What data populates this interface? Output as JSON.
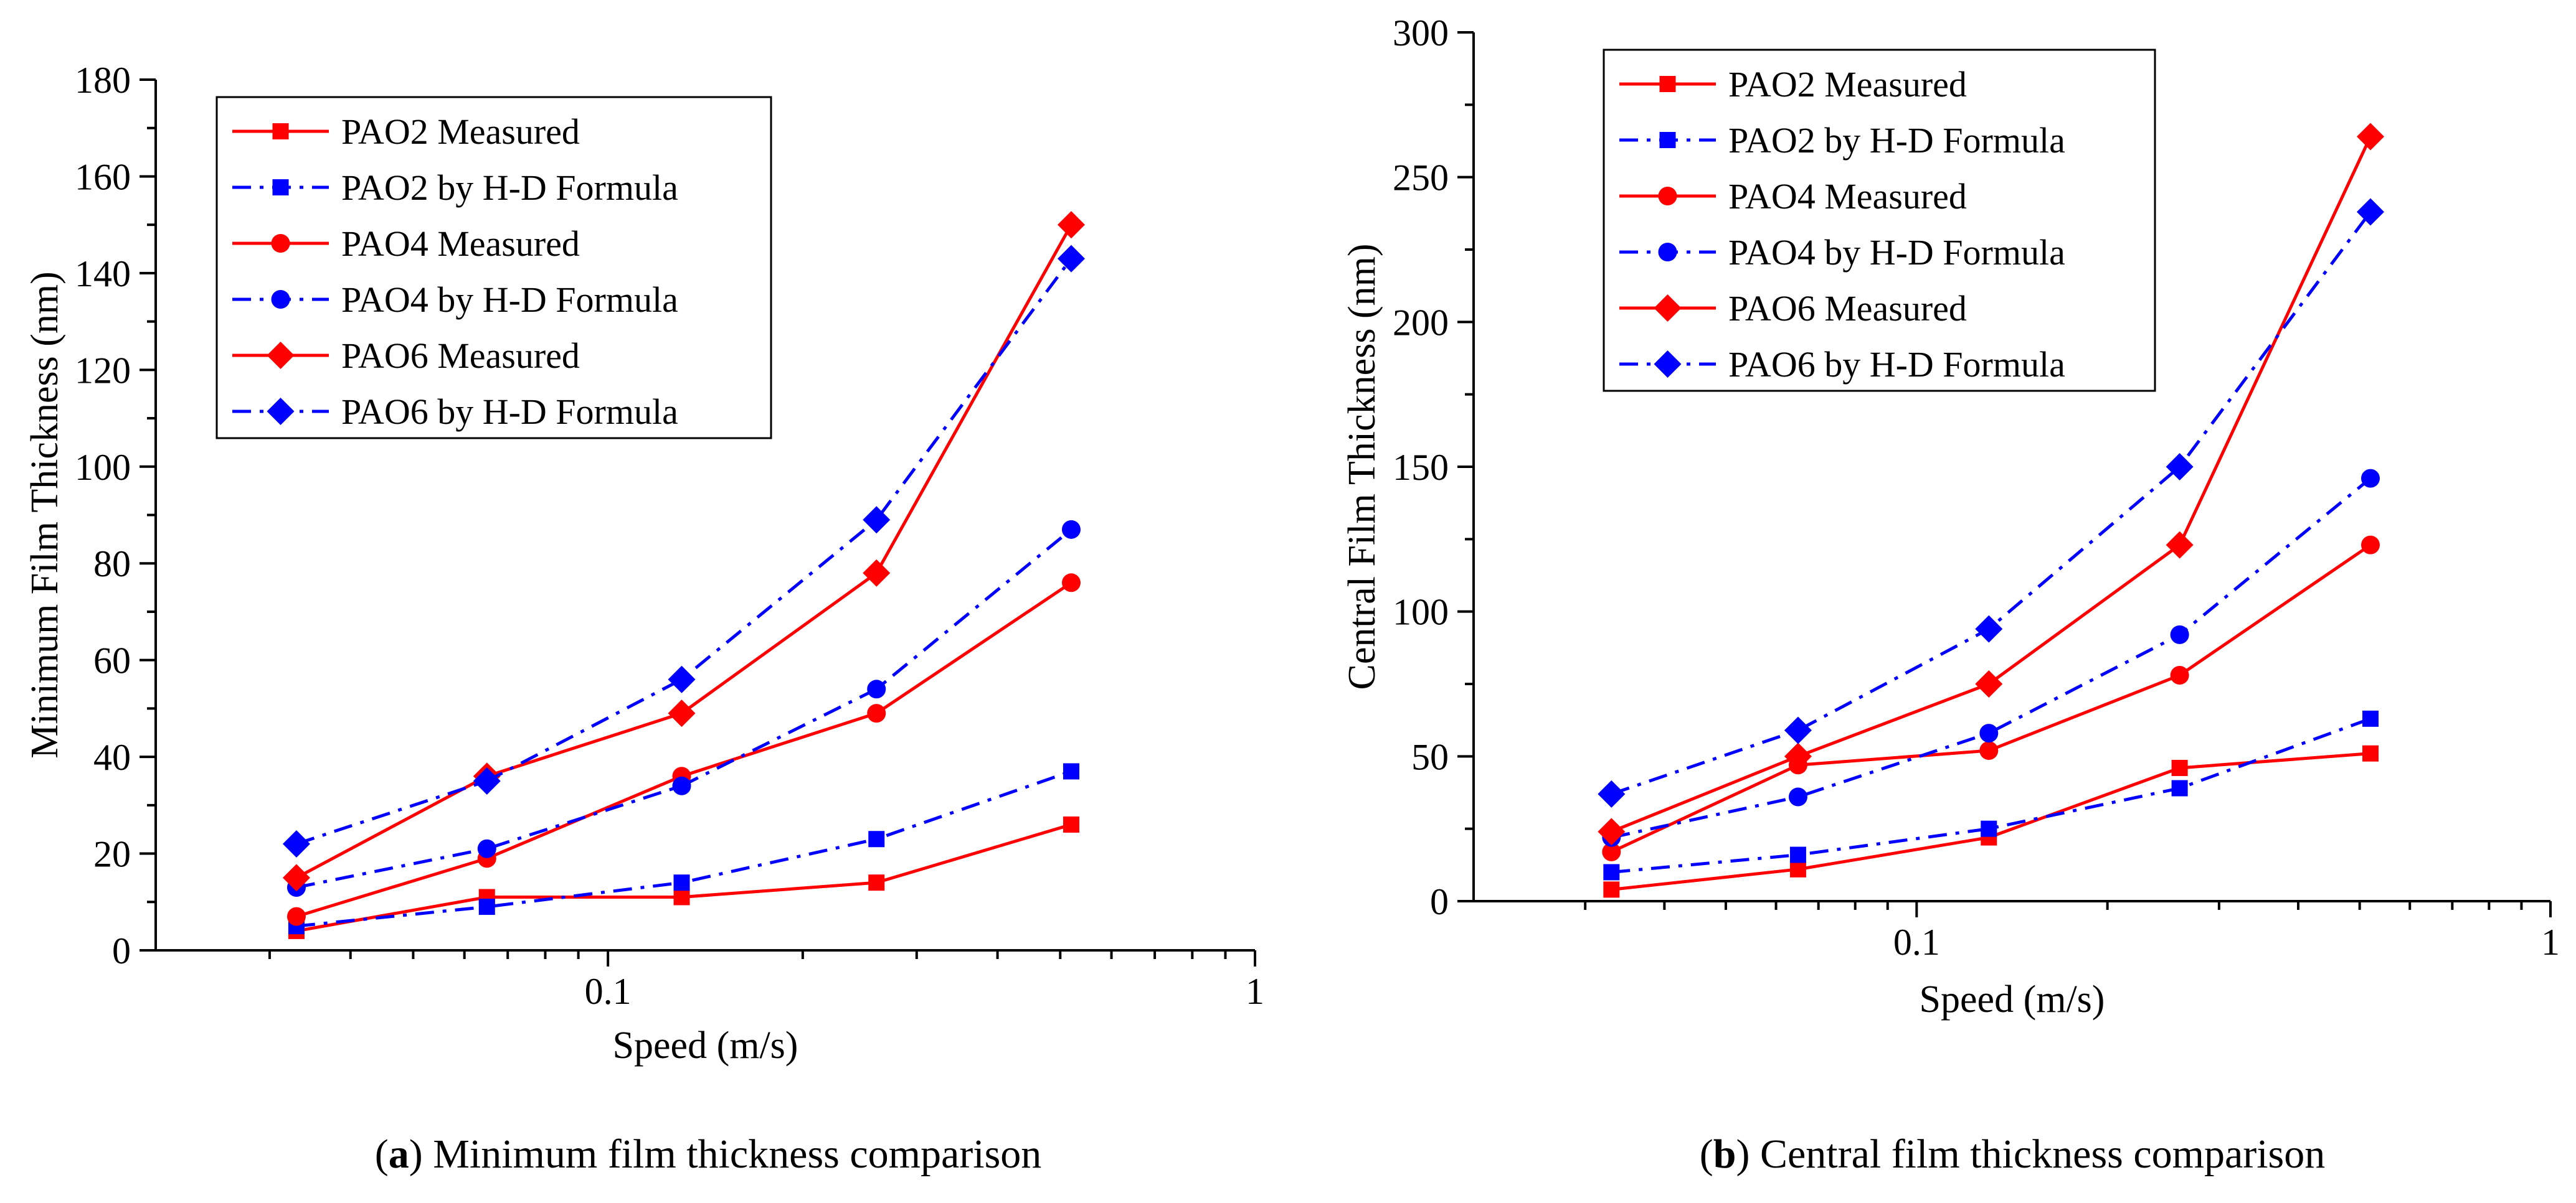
{
  "chart_data": [
    {
      "type": "line",
      "panel": "a",
      "caption_label": "a",
      "caption_text": " Minimum film thickness comparison",
      "xlabel": "Speed (m/s)",
      "ylabel": "Minimum Film Thickness (nm)",
      "xscale": "log",
      "xlim": [
        0.02,
        1
      ],
      "ylim": [
        0,
        180
      ],
      "x_ticks": [
        0.1,
        1
      ],
      "x_tick_labels": [
        "0.1",
        "1"
      ],
      "y_ticks": [
        0,
        20,
        40,
        60,
        80,
        100,
        120,
        140,
        160,
        180
      ],
      "y_tick_labels": [
        "0",
        "20",
        "40",
        "60",
        "80",
        "100",
        "120",
        "140",
        "160",
        "180"
      ],
      "legend_position": "top-left",
      "x": [
        0.033,
        0.065,
        0.13,
        0.26,
        0.52
      ],
      "series": [
        {
          "name": "PAO2 Measured",
          "marker": "square",
          "style": "solid",
          "color": "#ff0000",
          "values": [
            4,
            11,
            11,
            14,
            26
          ]
        },
        {
          "name": "PAO2 by H-D Formula",
          "marker": "square",
          "style": "dashdot",
          "color": "#0000ff",
          "values": [
            5,
            9,
            14,
            23,
            37
          ]
        },
        {
          "name": "PAO4 Measured",
          "marker": "circle",
          "style": "solid",
          "color": "#ff0000",
          "values": [
            7,
            19,
            36,
            49,
            76
          ]
        },
        {
          "name": "PAO4 by H-D Formula",
          "marker": "circle",
          "style": "dashdot",
          "color": "#0000ff",
          "values": [
            13,
            21,
            34,
            54,
            87
          ]
        },
        {
          "name": "PAO6 Measured",
          "marker": "diamond",
          "style": "solid",
          "color": "#ff0000",
          "values": [
            15,
            36,
            49,
            78,
            150
          ]
        },
        {
          "name": "PAO6 by H-D Formula",
          "marker": "diamond",
          "style": "dashdot",
          "color": "#0000ff",
          "values": [
            22,
            35,
            56,
            89,
            143
          ]
        }
      ]
    },
    {
      "type": "line",
      "panel": "b",
      "caption_label": "b",
      "caption_text": " Central film thickness comparison",
      "xlabel": "Speed (m/s)",
      "ylabel": "Central Film Thickness (nm)",
      "xscale": "log",
      "xlim": [
        0.02,
        1
      ],
      "ylim": [
        0,
        300
      ],
      "x_ticks": [
        0.1,
        1
      ],
      "x_tick_labels": [
        "0.1",
        "1"
      ],
      "y_ticks": [
        0,
        50,
        100,
        150,
        200,
        250,
        300
      ],
      "y_tick_labels": [
        "0",
        "50",
        "100",
        "150",
        "200",
        "250",
        "300"
      ],
      "legend_position": "top-left",
      "x": [
        0.033,
        0.065,
        0.13,
        0.26,
        0.52
      ],
      "series": [
        {
          "name": "PAO2 Measured",
          "marker": "square",
          "style": "solid",
          "color": "#ff0000",
          "values": [
            4,
            11,
            22,
            46,
            51
          ]
        },
        {
          "name": "PAO2 by H-D Formula",
          "marker": "square",
          "style": "dashdot",
          "color": "#0000ff",
          "values": [
            10,
            16,
            25,
            39,
            63
          ]
        },
        {
          "name": "PAO4 Measured",
          "marker": "circle",
          "style": "solid",
          "color": "#ff0000",
          "values": [
            17,
            47,
            52,
            78,
            123
          ]
        },
        {
          "name": "PAO4 by H-D Formula",
          "marker": "circle",
          "style": "dashdot",
          "color": "#0000ff",
          "values": [
            22,
            36,
            58,
            92,
            146
          ]
        },
        {
          "name": "PAO6 Measured",
          "marker": "diamond",
          "style": "solid",
          "color": "#ff0000",
          "values": [
            24,
            50,
            75,
            123,
            264
          ]
        },
        {
          "name": "PAO6 by H-D Formula",
          "marker": "diamond",
          "style": "dashdot",
          "color": "#0000ff",
          "values": [
            37,
            59,
            94,
            150,
            238
          ]
        }
      ]
    }
  ]
}
